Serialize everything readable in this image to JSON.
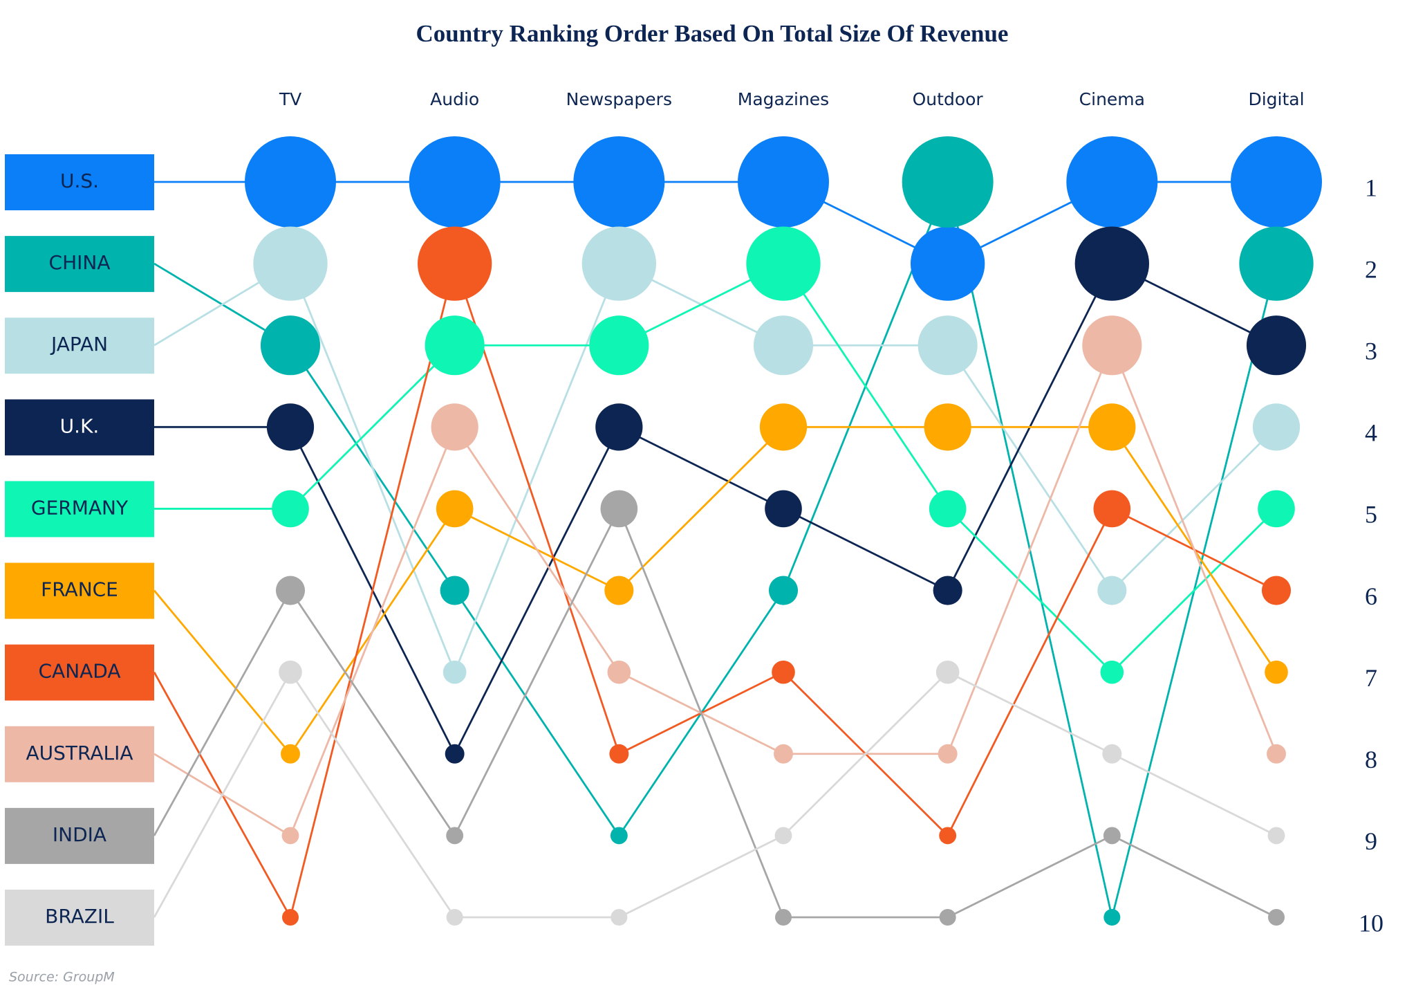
{
  "chart_data": {
    "type": "bump",
    "title": "Country Ranking Order Based On Total Size Of Revenue",
    "categories": [
      "TV",
      "Audio",
      "Newspapers",
      "Magazines",
      "Outdoor",
      "Cinema",
      "Digital"
    ],
    "ylim": [
      1,
      10
    ],
    "invert_y": true,
    "yticks": [
      1,
      2,
      3,
      4,
      5,
      6,
      7,
      8,
      9,
      10
    ],
    "series": [
      {
        "name": "U.S.",
        "color": "#0a7ff7",
        "values": [
          1,
          1,
          1,
          1,
          2,
          1,
          1
        ]
      },
      {
        "name": "CHINA",
        "color": "#00b3ad",
        "values": [
          3,
          6,
          9,
          6,
          1,
          10,
          2
        ]
      },
      {
        "name": "JAPAN",
        "color": "#b8e0e4",
        "values": [
          2,
          7,
          2,
          3,
          3,
          6,
          4
        ]
      },
      {
        "name": "U.K.",
        "color": "#0d2552",
        "values": [
          4,
          8,
          4,
          5,
          6,
          2,
          3
        ]
      },
      {
        "name": "GERMANY",
        "color": "#0ff5b4",
        "values": [
          5,
          3,
          3,
          2,
          5,
          7,
          5
        ]
      },
      {
        "name": "FRANCE",
        "color": "#ffa800",
        "values": [
          8,
          5,
          6,
          4,
          4,
          4,
          7
        ]
      },
      {
        "name": "CANADA",
        "color": "#f25a22",
        "values": [
          10,
          2,
          8,
          7,
          9,
          5,
          6
        ]
      },
      {
        "name": "AUSTRALIA",
        "color": "#eeb8a6",
        "values": [
          9,
          4,
          7,
          8,
          8,
          3,
          8
        ]
      },
      {
        "name": "INDIA",
        "color": "#a6a6a6",
        "values": [
          6,
          9,
          5,
          10,
          10,
          9,
          10
        ]
      },
      {
        "name": "BRAZIL",
        "color": "#d9d9d9",
        "values": [
          7,
          10,
          10,
          9,
          7,
          8,
          9
        ]
      }
    ],
    "source": "Source: GroupM"
  }
}
